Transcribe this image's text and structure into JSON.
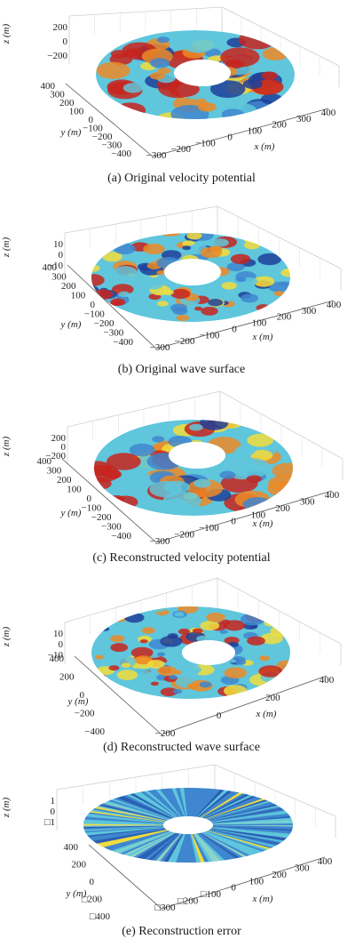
{
  "figure": {
    "panels": [
      {
        "id": "a",
        "caption": "(a) Original velocity potential",
        "surface": "smooth",
        "z_label": "z (m)",
        "z_ticks": [
          "200",
          "0",
          "−200"
        ],
        "y_label": "y (m)",
        "y_ticks": [
          "400",
          "300",
          "200",
          "100",
          "0",
          "−100",
          "−200",
          "−300",
          "−400"
        ],
        "x_label": "x (m)",
        "x_ticks": [
          "−300",
          "−200",
          "−100",
          "0",
          "100",
          "200",
          "300",
          "400"
        ]
      },
      {
        "id": "b",
        "caption": "(b) Original wave surface",
        "surface": "rough",
        "z_label": "z (m)",
        "z_ticks": [
          "10",
          "0",
          "−10"
        ],
        "y_label": "y (m)",
        "y_ticks": [
          "400",
          "300",
          "200",
          "100",
          "0",
          "−100",
          "−200",
          "−300",
          "−400"
        ],
        "x_label": "x (m)",
        "x_ticks": [
          "−300",
          "−200",
          "−100",
          "0",
          "100",
          "200",
          "300",
          "400"
        ]
      },
      {
        "id": "c",
        "caption": "(c) Reconstructed velocity potential",
        "surface": "smooth",
        "z_label": "z (m)",
        "z_ticks": [
          "200",
          "0",
          "−200"
        ],
        "y_label": "y (m)",
        "y_ticks": [
          "400",
          "300",
          "200",
          "100",
          "0",
          "−100",
          "−200",
          "−300",
          "−400"
        ],
        "x_label": "x (m)",
        "x_ticks": [
          "−300",
          "−200",
          "−100",
          "0",
          "100",
          "200",
          "300",
          "400"
        ]
      },
      {
        "id": "d",
        "caption": "(d) Reconstructed wave surface",
        "surface": "rough",
        "z_label": "z (m)",
        "z_ticks": [
          "10",
          "0",
          "−10"
        ],
        "y_label": "y (m)",
        "y_ticks": [
          "400",
          "200",
          "0",
          "−200",
          "−400"
        ],
        "x_label": "x (m)",
        "x_ticks": [
          "−200",
          "0",
          "200",
          "400"
        ]
      },
      {
        "id": "e",
        "caption": "(e) Reconstruction error",
        "surface": "streaks",
        "z_label": "z (m)",
        "z_ticks": [
          "1",
          "0",
          "□1"
        ],
        "y_label": "y (m)",
        "y_ticks": [
          "400",
          "200",
          "0",
          "□200",
          "□400"
        ],
        "x_label": "x (m)",
        "x_ticks": [
          "□300",
          "□200",
          "□100",
          "0",
          "100",
          "200",
          "300",
          "400"
        ]
      }
    ]
  },
  "colors": {
    "deep_blue": "#1f3f9a",
    "blue": "#3f86cf",
    "cyan": "#5fc6dc",
    "yellow": "#f2dc3c",
    "orange": "#ec8a26",
    "red": "#c8231c",
    "box": "#cfcfcf"
  }
}
